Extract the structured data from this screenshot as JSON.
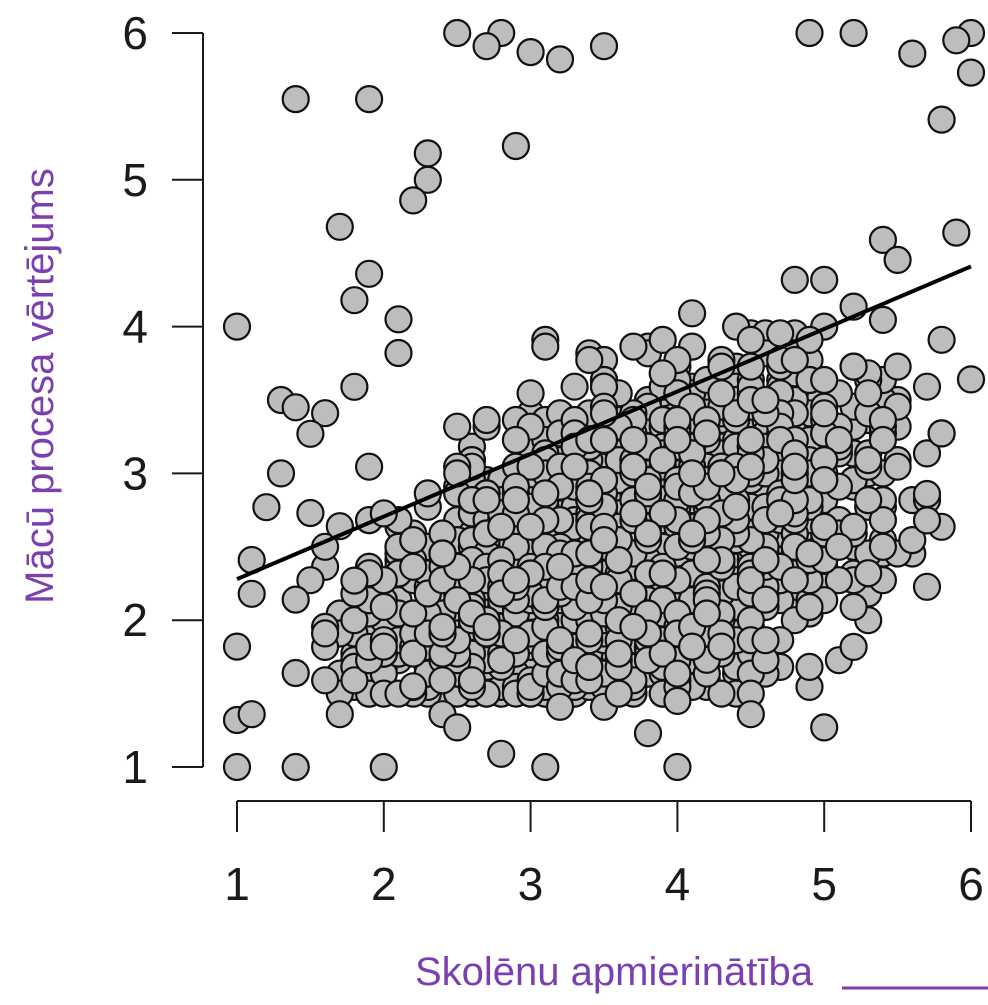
{
  "chart_data": {
    "type": "scatter",
    "xlabel": "Skolēnu apmierinātība",
    "ylabel": "Mācū procesa vērtējums",
    "xlim": [
      1,
      6
    ],
    "ylim": [
      1,
      6
    ],
    "x_ticks": [
      "1",
      "2",
      "3",
      "4",
      "5",
      "6"
    ],
    "y_ticks": [
      "1",
      "2",
      "3",
      "4",
      "5",
      "6"
    ],
    "grid": false,
    "colors": {
      "point_fill": "#bdbdbd",
      "point_stroke": "#111111",
      "trend": "#000000",
      "axis_label": "#7a3fb0"
    },
    "trendline": {
      "x": [
        1,
        6
      ],
      "y": [
        2.28,
        4.41
      ]
    },
    "outliers": [
      [
        1.0,
        4.0
      ],
      [
        1.0,
        1.82
      ],
      [
        1.0,
        1.32
      ],
      [
        1.0,
        1.0
      ],
      [
        1.1,
        1.36
      ],
      [
        1.1,
        2.18
      ],
      [
        1.1,
        2.41
      ],
      [
        1.4,
        5.55
      ],
      [
        1.9,
        5.55
      ],
      [
        1.4,
        1.0
      ],
      [
        2.0,
        1.0
      ],
      [
        2.8,
        1.09
      ],
      [
        3.1,
        1.0
      ],
      [
        4.0,
        1.0
      ],
      [
        4.0,
        1.45
      ],
      [
        4.5,
        1.36
      ],
      [
        5.0,
        1.27
      ],
      [
        3.8,
        1.23
      ],
      [
        2.5,
        6.0
      ],
      [
        2.8,
        6.0
      ],
      [
        4.9,
        6.0
      ],
      [
        5.2,
        6.0
      ],
      [
        6.0,
        6.0
      ],
      [
        5.9,
        5.95
      ],
      [
        6.0,
        5.73
      ],
      [
        3.0,
        5.87
      ],
      [
        3.5,
        5.91
      ],
      [
        3.2,
        5.82
      ],
      [
        2.7,
        5.91
      ],
      [
        1.7,
        4.68
      ],
      [
        1.3,
        3.5
      ],
      [
        1.4,
        3.45
      ],
      [
        1.6,
        3.41
      ],
      [
        1.5,
        3.27
      ],
      [
        1.3,
        3.0
      ],
      [
        1.2,
        2.77
      ],
      [
        6.0,
        3.64
      ],
      [
        5.8,
        3.91
      ],
      [
        5.7,
        2.68
      ],
      [
        5.7,
        2.86
      ],
      [
        5.4,
        2.5
      ],
      [
        5.3,
        2.32
      ],
      [
        4.9,
        2.09
      ],
      [
        4.6,
        2.14
      ],
      [
        4.2,
        1.73
      ],
      [
        5.9,
        4.64
      ],
      [
        5.8,
        5.41
      ],
      [
        5.6,
        5.86
      ],
      [
        2.9,
        5.23
      ],
      [
        2.3,
        5.18
      ],
      [
        2.3,
        5.0
      ],
      [
        2.2,
        4.86
      ],
      [
        1.9,
        4.36
      ],
      [
        1.8,
        4.18
      ],
      [
        1.8,
        3.59
      ],
      [
        1.4,
        1.64
      ],
      [
        1.7,
        1.36
      ],
      [
        2.0,
        1.82
      ],
      [
        2.2,
        1.55
      ],
      [
        2.4,
        1.36
      ],
      [
        2.5,
        1.27
      ],
      [
        1.5,
        2.73
      ],
      [
        1.4,
        2.14
      ],
      [
        1.6,
        1.91
      ],
      [
        2.1,
        3.82
      ],
      [
        2.1,
        4.05
      ],
      [
        1.9,
        2.32
      ],
      [
        1.8,
        2.27
      ],
      [
        1.6,
        2.5
      ],
      [
        1.7,
        2.64
      ],
      [
        3.2,
        1.41
      ],
      [
        3.5,
        1.41
      ],
      [
        3.6,
        1.5
      ],
      [
        4.1,
        1.82
      ],
      [
        4.3,
        1.82
      ]
    ]
  }
}
